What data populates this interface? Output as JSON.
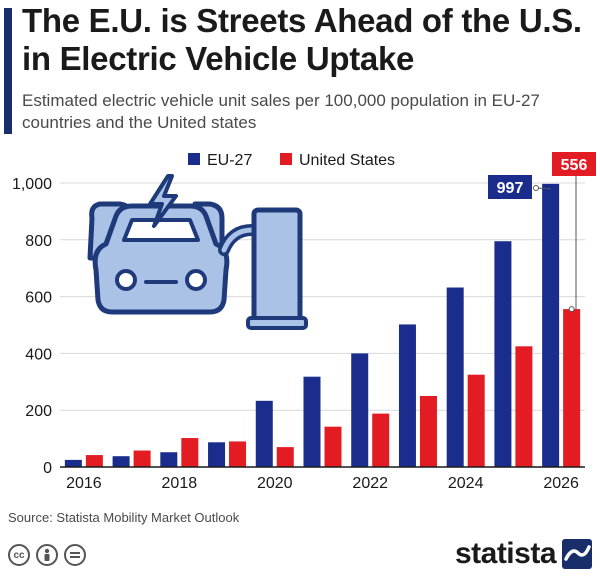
{
  "header": {
    "title": "The E.U. is Streets Ahead of the U.S. in Electric Vehicle Uptake",
    "subtitle": "Estimated electric vehicle unit sales per 100,000 population in EU-27 countries and the United states"
  },
  "footer": {
    "source": "Source: Statista Mobility Market Outlook",
    "brand": "statista"
  },
  "colors": {
    "eu": "#1a2d8c",
    "us": "#e31b23",
    "accent": "#1a2d6b",
    "icon_fill": "#a9c2e6",
    "icon_stroke": "#1f3a7a"
  },
  "icons": [
    "ev-charging-illustration-icon",
    "cc-icon",
    "attribution-icon",
    "no-derivatives-icon",
    "statista-logo-icon"
  ],
  "chart_data": {
    "type": "bar",
    "categories": [
      "2016",
      "2017",
      "2018",
      "2019",
      "2020",
      "2021",
      "2022",
      "2023",
      "2024",
      "2025",
      "2026"
    ],
    "tick_labels_x": [
      "2016",
      "2018",
      "2020",
      "2022",
      "2024",
      "2026"
    ],
    "tick_labels_y": [
      "0",
      "200",
      "400",
      "600",
      "800",
      "1,000"
    ],
    "series": [
      {
        "name": "EU-27",
        "values": [
          25,
          38,
          52,
          87,
          233,
          318,
          400,
          502,
          632,
          795,
          997
        ]
      },
      {
        "name": "United States",
        "values": [
          42,
          58,
          102,
          90,
          70,
          142,
          188,
          250,
          325,
          425,
          556
        ]
      }
    ],
    "ylim": [
      0,
      1000
    ],
    "grid": true,
    "legend_position": "top",
    "annotations": [
      {
        "series": "EU-27",
        "category": "2026",
        "label": "997"
      },
      {
        "series": "United States",
        "category": "2026",
        "label": "556"
      }
    ]
  }
}
